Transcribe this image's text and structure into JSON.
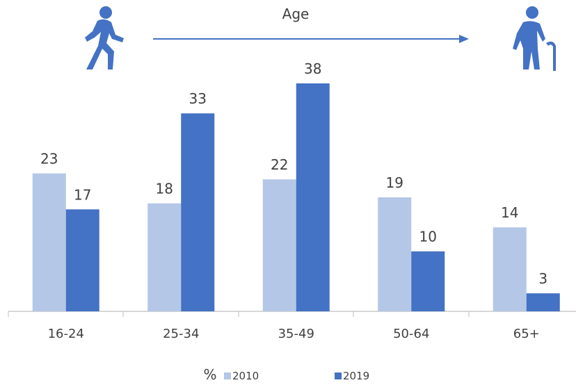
{
  "header": {
    "axis_title": "Age",
    "left_icon": "person-walking-icon",
    "right_icon": "elderly-person-with-cane-icon"
  },
  "legend": {
    "unit": "%",
    "placement": "bottom-center"
  },
  "colors": {
    "series_2010": "#b4c7e7",
    "series_2019": "#4472c4",
    "text": "#404040",
    "axis": "#bfbfbf"
  },
  "chart_data": {
    "type": "bar",
    "categories": [
      "16-24",
      "25-34",
      "35-49",
      "50-64",
      "65+"
    ],
    "series": [
      {
        "name": "2010",
        "values": [
          23,
          18,
          22,
          19,
          14
        ]
      },
      {
        "name": "2019",
        "values": [
          17,
          33,
          38,
          10,
          3
        ]
      }
    ],
    "xlabel": "Age",
    "ylabel": "",
    "ylim": [
      0,
      38
    ],
    "grid": false,
    "legend": "bottom"
  }
}
